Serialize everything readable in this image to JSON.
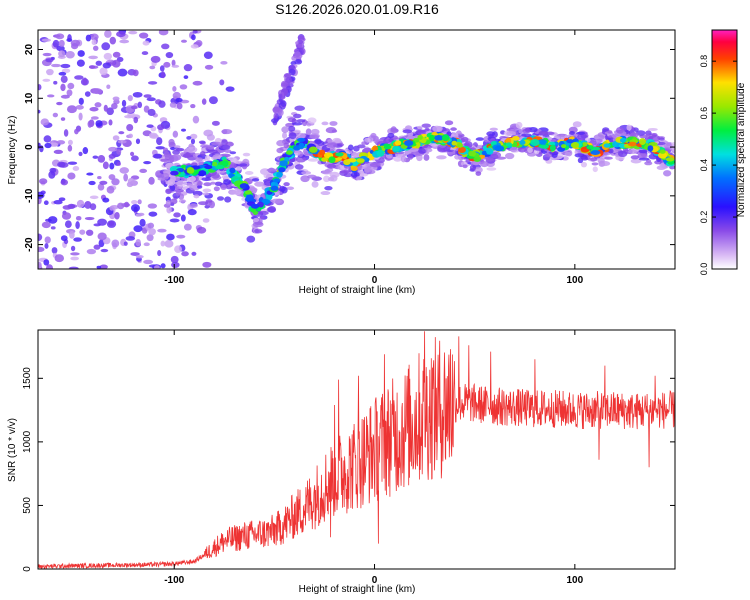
{
  "figure": {
    "title": "S126.2026.020.01.09.R16"
  },
  "colors": {
    "background": "#ffffff",
    "axis": "#000000",
    "snr_line": "#ee3333",
    "spectrum_low": "#bb88ee",
    "spectrum_mid": "#4400ff"
  },
  "chart_data": [
    {
      "type": "heatmap",
      "title": "S126.2026.020.01.09.R16",
      "xlabel": "Height of straight line (km)",
      "ylabel": "Frequency (Hz)",
      "xlim": [
        -168,
        150
      ],
      "ylim": [
        -25,
        24
      ],
      "xticks": [
        -100,
        0,
        100
      ],
      "xtick_labels": [
        "-100",
        "0",
        "100"
      ],
      "yticks": [
        -20,
        -10,
        0,
        10,
        20
      ],
      "ytick_labels": [
        "-20",
        "-10",
        "0",
        "10",
        "20"
      ],
      "colorbar": {
        "label": "Normalized spectral amplitude",
        "range": [
          0.0,
          0.92
        ],
        "ticks": [
          0.0,
          0.2,
          0.4,
          0.6,
          0.8
        ],
        "tick_labels": [
          "0.0",
          "0.2",
          "0.4",
          "0.6",
          "0.8"
        ],
        "colormap": "rainbow (magenta-red-yellow-green-cyan-blue-violet-white)"
      },
      "ridge": {
        "x": [
          -100,
          -90,
          -80,
          -75,
          -70,
          -65,
          -60,
          -55,
          -50,
          -45,
          -40,
          -35,
          -30,
          -25,
          -20,
          -15,
          -10,
          -5,
          0,
          10,
          20,
          30,
          40,
          45,
          50,
          55,
          60,
          70,
          80,
          90,
          100,
          110,
          120,
          130,
          140,
          148
        ],
        "y": [
          -5,
          -5,
          -4,
          -3,
          -6,
          -8,
          -13,
          -11,
          -8,
          -3,
          0,
          1,
          -1,
          -2,
          -2,
          -2,
          -4,
          -2,
          -1,
          0,
          1,
          2,
          1,
          -1,
          -2,
          -1,
          0,
          1,
          1,
          0,
          1,
          -1,
          1,
          1,
          0,
          -3
        ],
        "peak_amplitude": 0.9
      },
      "noise_region": {
        "x_range": [
          -168,
          -100
        ],
        "y_range": [
          -25,
          24
        ],
        "amplitude": 0.2
      }
    },
    {
      "type": "line",
      "xlabel": "Height of straight line (km)",
      "ylabel": "SNR (10 * v/v)",
      "xlim": [
        -168,
        150
      ],
      "ylim": [
        0,
        1880
      ],
      "xticks": [
        -100,
        0,
        100
      ],
      "xtick_labels": [
        "-100",
        "0",
        "100"
      ],
      "yticks": [
        0,
        500,
        1000,
        1500
      ],
      "ytick_labels": [
        "0",
        "500",
        "1000",
        "1500"
      ],
      "series": [
        {
          "name": "SNR",
          "x": [
            -168,
            -150,
            -130,
            -110,
            -100,
            -90,
            -85,
            -80,
            -75,
            -70,
            -65,
            -60,
            -55,
            -50,
            -45,
            -40,
            -35,
            -30,
            -25,
            -20,
            -15,
            -10,
            -5,
            0,
            5,
            10,
            15,
            20,
            25,
            30,
            35,
            40,
            45,
            50,
            55,
            60,
            70,
            80,
            90,
            100,
            110,
            120,
            130,
            140,
            150
          ],
          "y": [
            20,
            25,
            30,
            35,
            40,
            60,
            110,
            170,
            220,
            240,
            260,
            270,
            280,
            300,
            350,
            420,
            480,
            560,
            650,
            720,
            770,
            820,
            880,
            940,
            1000,
            1050,
            1100,
            1160,
            1220,
            1260,
            1280,
            1300,
            1310,
            1300,
            1290,
            1280,
            1270,
            1260,
            1260,
            1250,
            1250,
            1250,
            1240,
            1250,
            1250
          ],
          "spikes": [
            {
              "x": -18,
              "y": 1490
            },
            {
              "x": -20,
              "y": 1290
            },
            {
              "x": -8,
              "y": 1520
            },
            {
              "x": 5,
              "y": 1690
            },
            {
              "x": 25,
              "y": 1870
            },
            {
              "x": 38,
              "y": 1730
            },
            {
              "x": 42,
              "y": 1830
            },
            {
              "x": 47,
              "y": 1760
            },
            {
              "x": 58,
              "y": 1710
            },
            {
              "x": 80,
              "y": 1650
            },
            {
              "x": 115,
              "y": 1600
            },
            {
              "x": 140,
              "y": 1520
            },
            {
              "x": 137,
              "y": 800
            },
            {
              "x": 112,
              "y": 860
            },
            {
              "x": -22,
              "y": 250
            },
            {
              "x": 2,
              "y": 200
            }
          ]
        }
      ]
    }
  ]
}
